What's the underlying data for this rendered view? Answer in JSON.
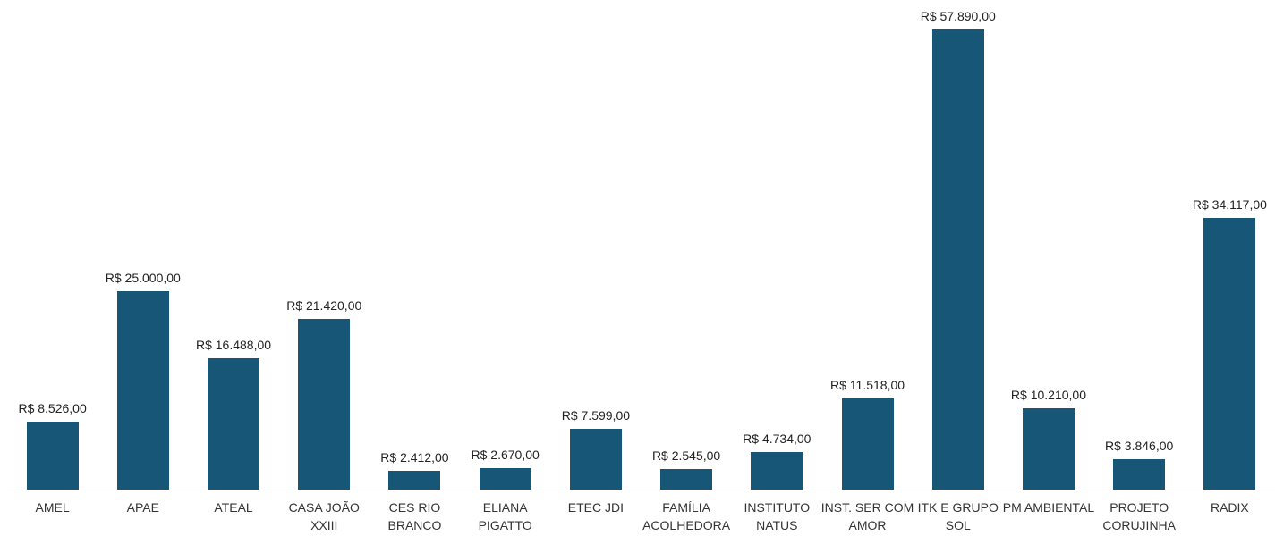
{
  "chart_data": {
    "type": "bar",
    "color": "#175676",
    "categories": [
      "AMEL",
      "APAE",
      "ATEAL",
      "CASA JOÃO XXIII",
      "CES RIO BRANCO",
      "ELIANA PIGATTO",
      "ETEC JDI",
      "FAMÍLIA ACOLHEDORA",
      "INSTITUTO NATUS",
      "INST. SER COM AMOR",
      "ITK E GRUPO SOL",
      "PM AMBIENTAL",
      "PROJETO CORUJINHA",
      "RADIX"
    ],
    "values": [
      8526,
      25000,
      16488,
      21420,
      2412,
      2670,
      7599,
      2545,
      4734,
      11518,
      57890,
      10210,
      3846,
      34117
    ],
    "value_labels": [
      "R$ 8.526,00",
      "R$ 25.000,00",
      "R$ 16.488,00",
      "R$ 21.420,00",
      "R$ 2.412,00",
      "R$ 2.670,00",
      "R$ 7.599,00",
      "R$ 2.545,00",
      "R$ 4.734,00",
      "R$ 11.518,00",
      "R$ 57.890,00",
      "R$ 10.210,00",
      "R$ 3.846,00",
      "R$ 34.117,00"
    ]
  }
}
